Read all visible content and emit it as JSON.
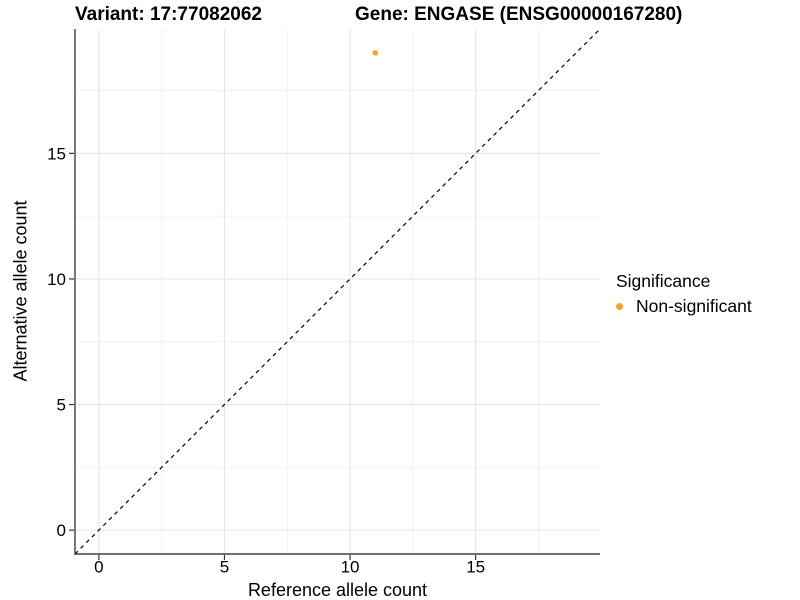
{
  "header": {
    "variant_title": "Variant: 17:77082062",
    "gene_title": "Gene: ENGASE (ENSG00000167280)"
  },
  "chart_data": {
    "type": "scatter",
    "xlabel": "Reference allele count",
    "ylabel": "Alternative allele count",
    "xlim": [
      -0.95,
      19.95
    ],
    "ylim": [
      -0.95,
      19.95
    ],
    "x_major_ticks": [
      0,
      5,
      10,
      15
    ],
    "y_major_ticks": [
      0,
      5,
      10,
      15
    ],
    "x_minor_ticks": [
      2.5,
      7.5,
      12.5,
      17.5
    ],
    "y_minor_ticks": [
      2.5,
      7.5,
      12.5,
      17.5
    ],
    "grid": "major and minor gridlines on white panel, axis lines left and bottom only",
    "reference_line": {
      "type": "identity",
      "slope": 1,
      "intercept": 0,
      "style": "dashed",
      "color": "#000000"
    },
    "series": [
      {
        "name": "Non-significant",
        "color": "#FAA032",
        "points": [
          {
            "x": 11,
            "y": 19
          }
        ]
      }
    ],
    "legend": {
      "title": "Significance",
      "position": "right",
      "entries": [
        {
          "label": "Non-significant",
          "color": "#FAA032"
        }
      ]
    },
    "colors": {
      "point": "#FAA032",
      "axis_line": "#404040",
      "tick_mark": "#333333",
      "grid_major": "#E4E4E4",
      "grid_minor": "#F0F0F0",
      "text": "#000000"
    }
  }
}
